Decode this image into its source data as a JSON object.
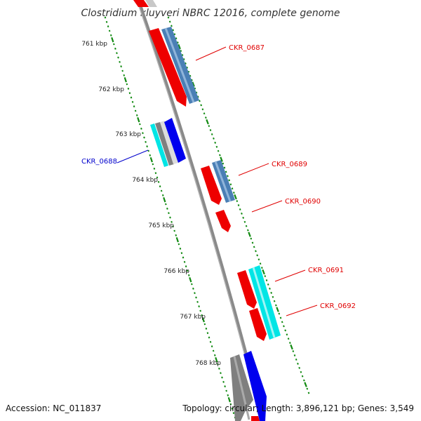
{
  "title": "Clostridium kluyveri NBRC 12016, complete genome",
  "accession": "Accession: NC_011837",
  "summary": "Topology: circular; Length: 3,896,121 bp; Genes: 3,549",
  "ticks": [
    "761 kbp",
    "762 kbp",
    "763 kbp",
    "764 kbp",
    "765 kbp",
    "766 kbp",
    "767 kbp",
    "768 kbp"
  ],
  "gene_labels": [
    {
      "id": "g0687",
      "text": "CKR_0687",
      "color": "#e00000"
    },
    {
      "id": "g0688",
      "text": "CKR_0688",
      "color": "#0000cc"
    },
    {
      "id": "g0689",
      "text": "CKR_0689",
      "color": "#e00000"
    },
    {
      "id": "g0690",
      "text": "CKR_0690",
      "color": "#e00000"
    },
    {
      "id": "g0691",
      "text": "CKR_0691",
      "color": "#e00000"
    },
    {
      "id": "g0692",
      "text": "CKR_0692",
      "color": "#e00000"
    }
  ],
  "colors": {
    "backbone": "#8a8a8a",
    "dots": "#118a11",
    "red": "#ee0000",
    "steel_blue": "#4a7fb5",
    "blue": "#0000ee",
    "cyan": "#00e5e5",
    "gray": "#7f7f7f",
    "light_gray": "#c8c8c8",
    "leader_blue": "#0000cc",
    "leader_red": "#e00000"
  }
}
